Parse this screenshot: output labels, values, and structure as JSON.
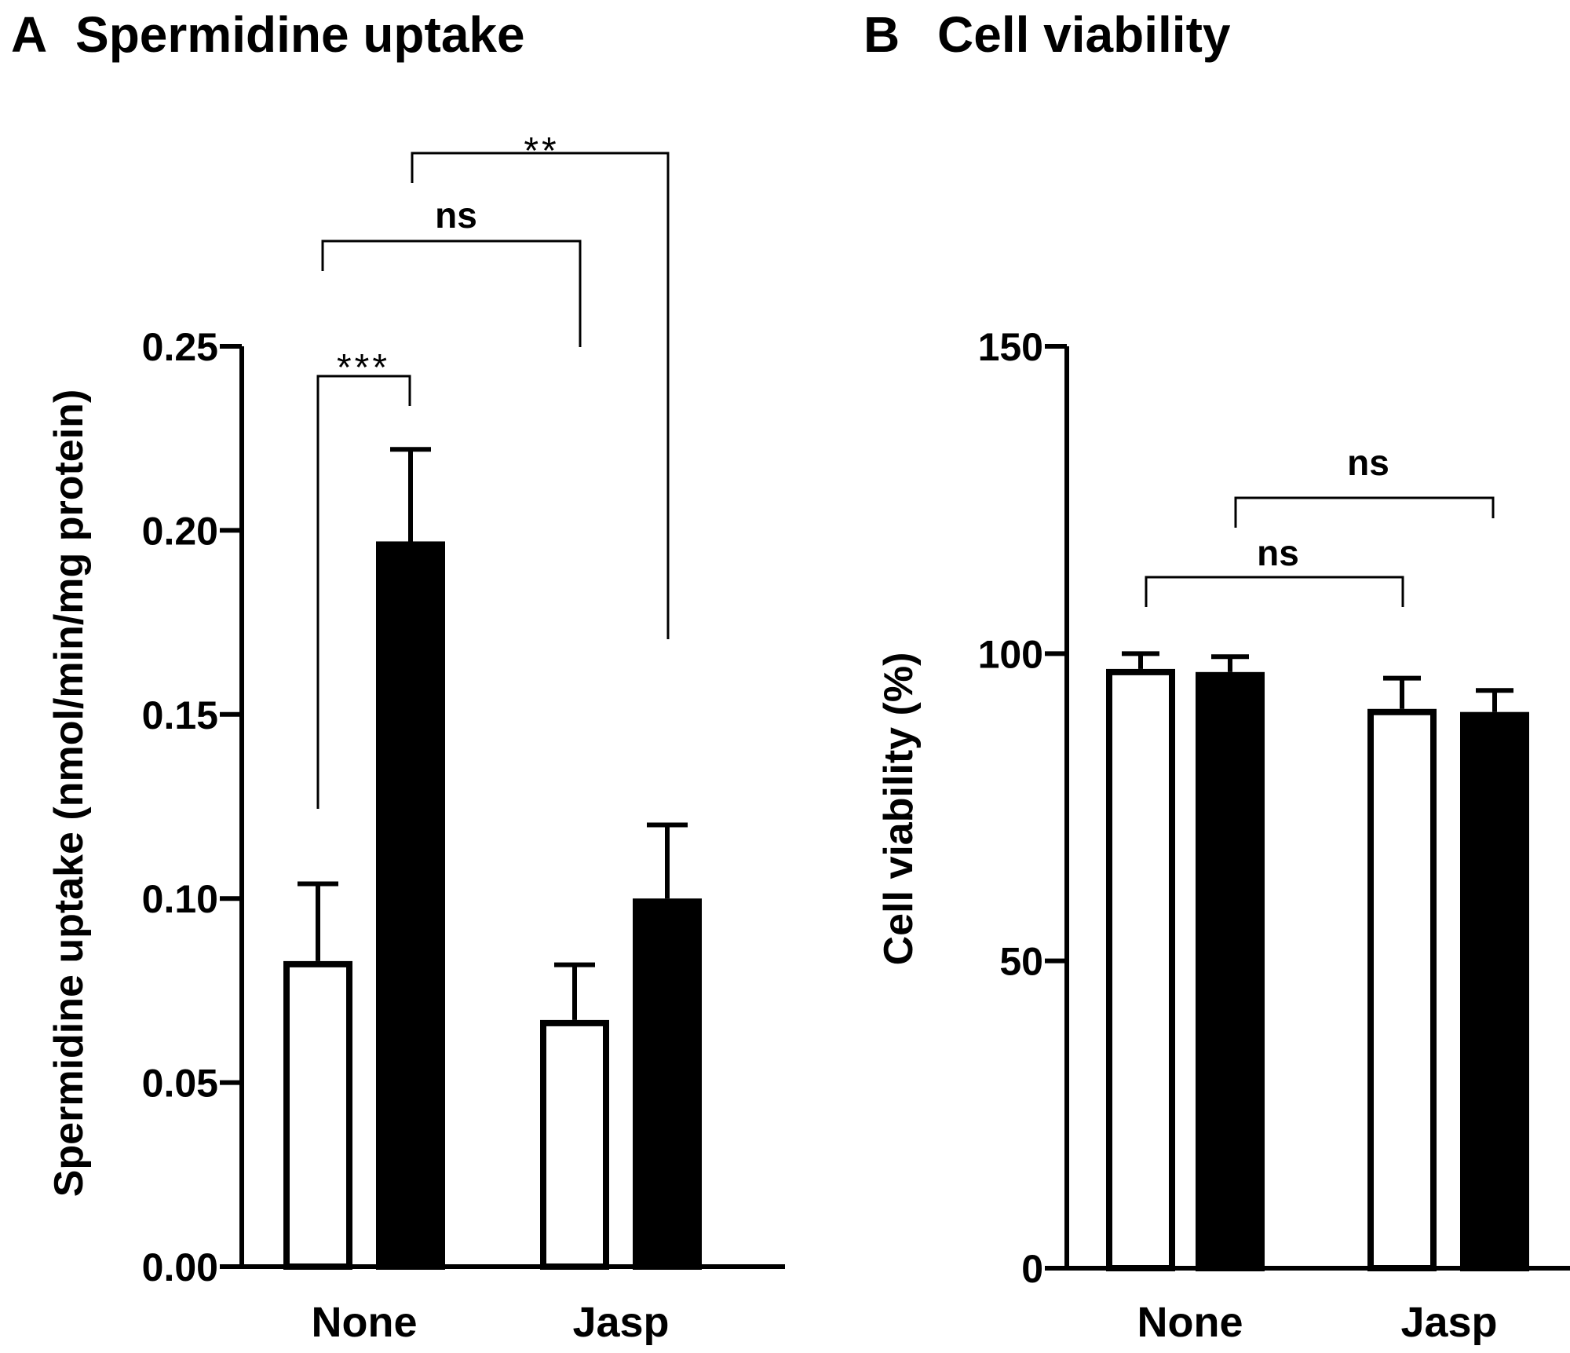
{
  "chart_data": [
    {
      "type": "bar",
      "panel_letter": "A",
      "title": "Spermidine uptake",
      "ylabel": "Spermidine uptake (nmol/min/mg protein)",
      "xlabel": "",
      "categories": [
        "None",
        "Jasp"
      ],
      "yticks": [
        "0.00",
        "0.05",
        "0.10",
        "0.15",
        "0.20",
        "0.25"
      ],
      "ylim": [
        0,
        0.25
      ],
      "grid": false,
      "series": [
        {
          "fill": "#ffffff",
          "values": [
            0.083,
            0.067
          ],
          "errors": [
            0.021,
            0.015
          ]
        },
        {
          "fill": "#000000",
          "values": [
            0.197,
            0.1
          ],
          "errors": [
            0.025,
            0.02
          ]
        }
      ],
      "annotations": [
        {
          "label": "***",
          "from": [
            0,
            0
          ],
          "to": [
            0,
            1
          ]
        },
        {
          "label": "ns",
          "from": [
            0,
            0
          ],
          "to": [
            1,
            0
          ]
        },
        {
          "label": "**",
          "from": [
            0,
            1
          ],
          "to": [
            1,
            1
          ]
        }
      ]
    },
    {
      "type": "bar",
      "panel_letter": "B",
      "title": "Cell viability",
      "ylabel": "Cell viability (%)",
      "xlabel": "",
      "categories": [
        "None",
        "Jasp"
      ],
      "yticks": [
        "0",
        "50",
        "100",
        "150"
      ],
      "ylim": [
        0,
        150
      ],
      "grid": false,
      "series": [
        {
          "fill": "#ffffff",
          "values": [
            97.5,
            91
          ],
          "errors": [
            2.5,
            5
          ]
        },
        {
          "fill": "#000000",
          "values": [
            97,
            90.5
          ],
          "errors": [
            2.5,
            3.5
          ]
        }
      ],
      "annotations": [
        {
          "label": "ns",
          "from": [
            0,
            0
          ],
          "to": [
            1,
            0
          ]
        },
        {
          "label": "ns",
          "from": [
            0,
            1
          ],
          "to": [
            1,
            1
          ]
        }
      ]
    }
  ]
}
